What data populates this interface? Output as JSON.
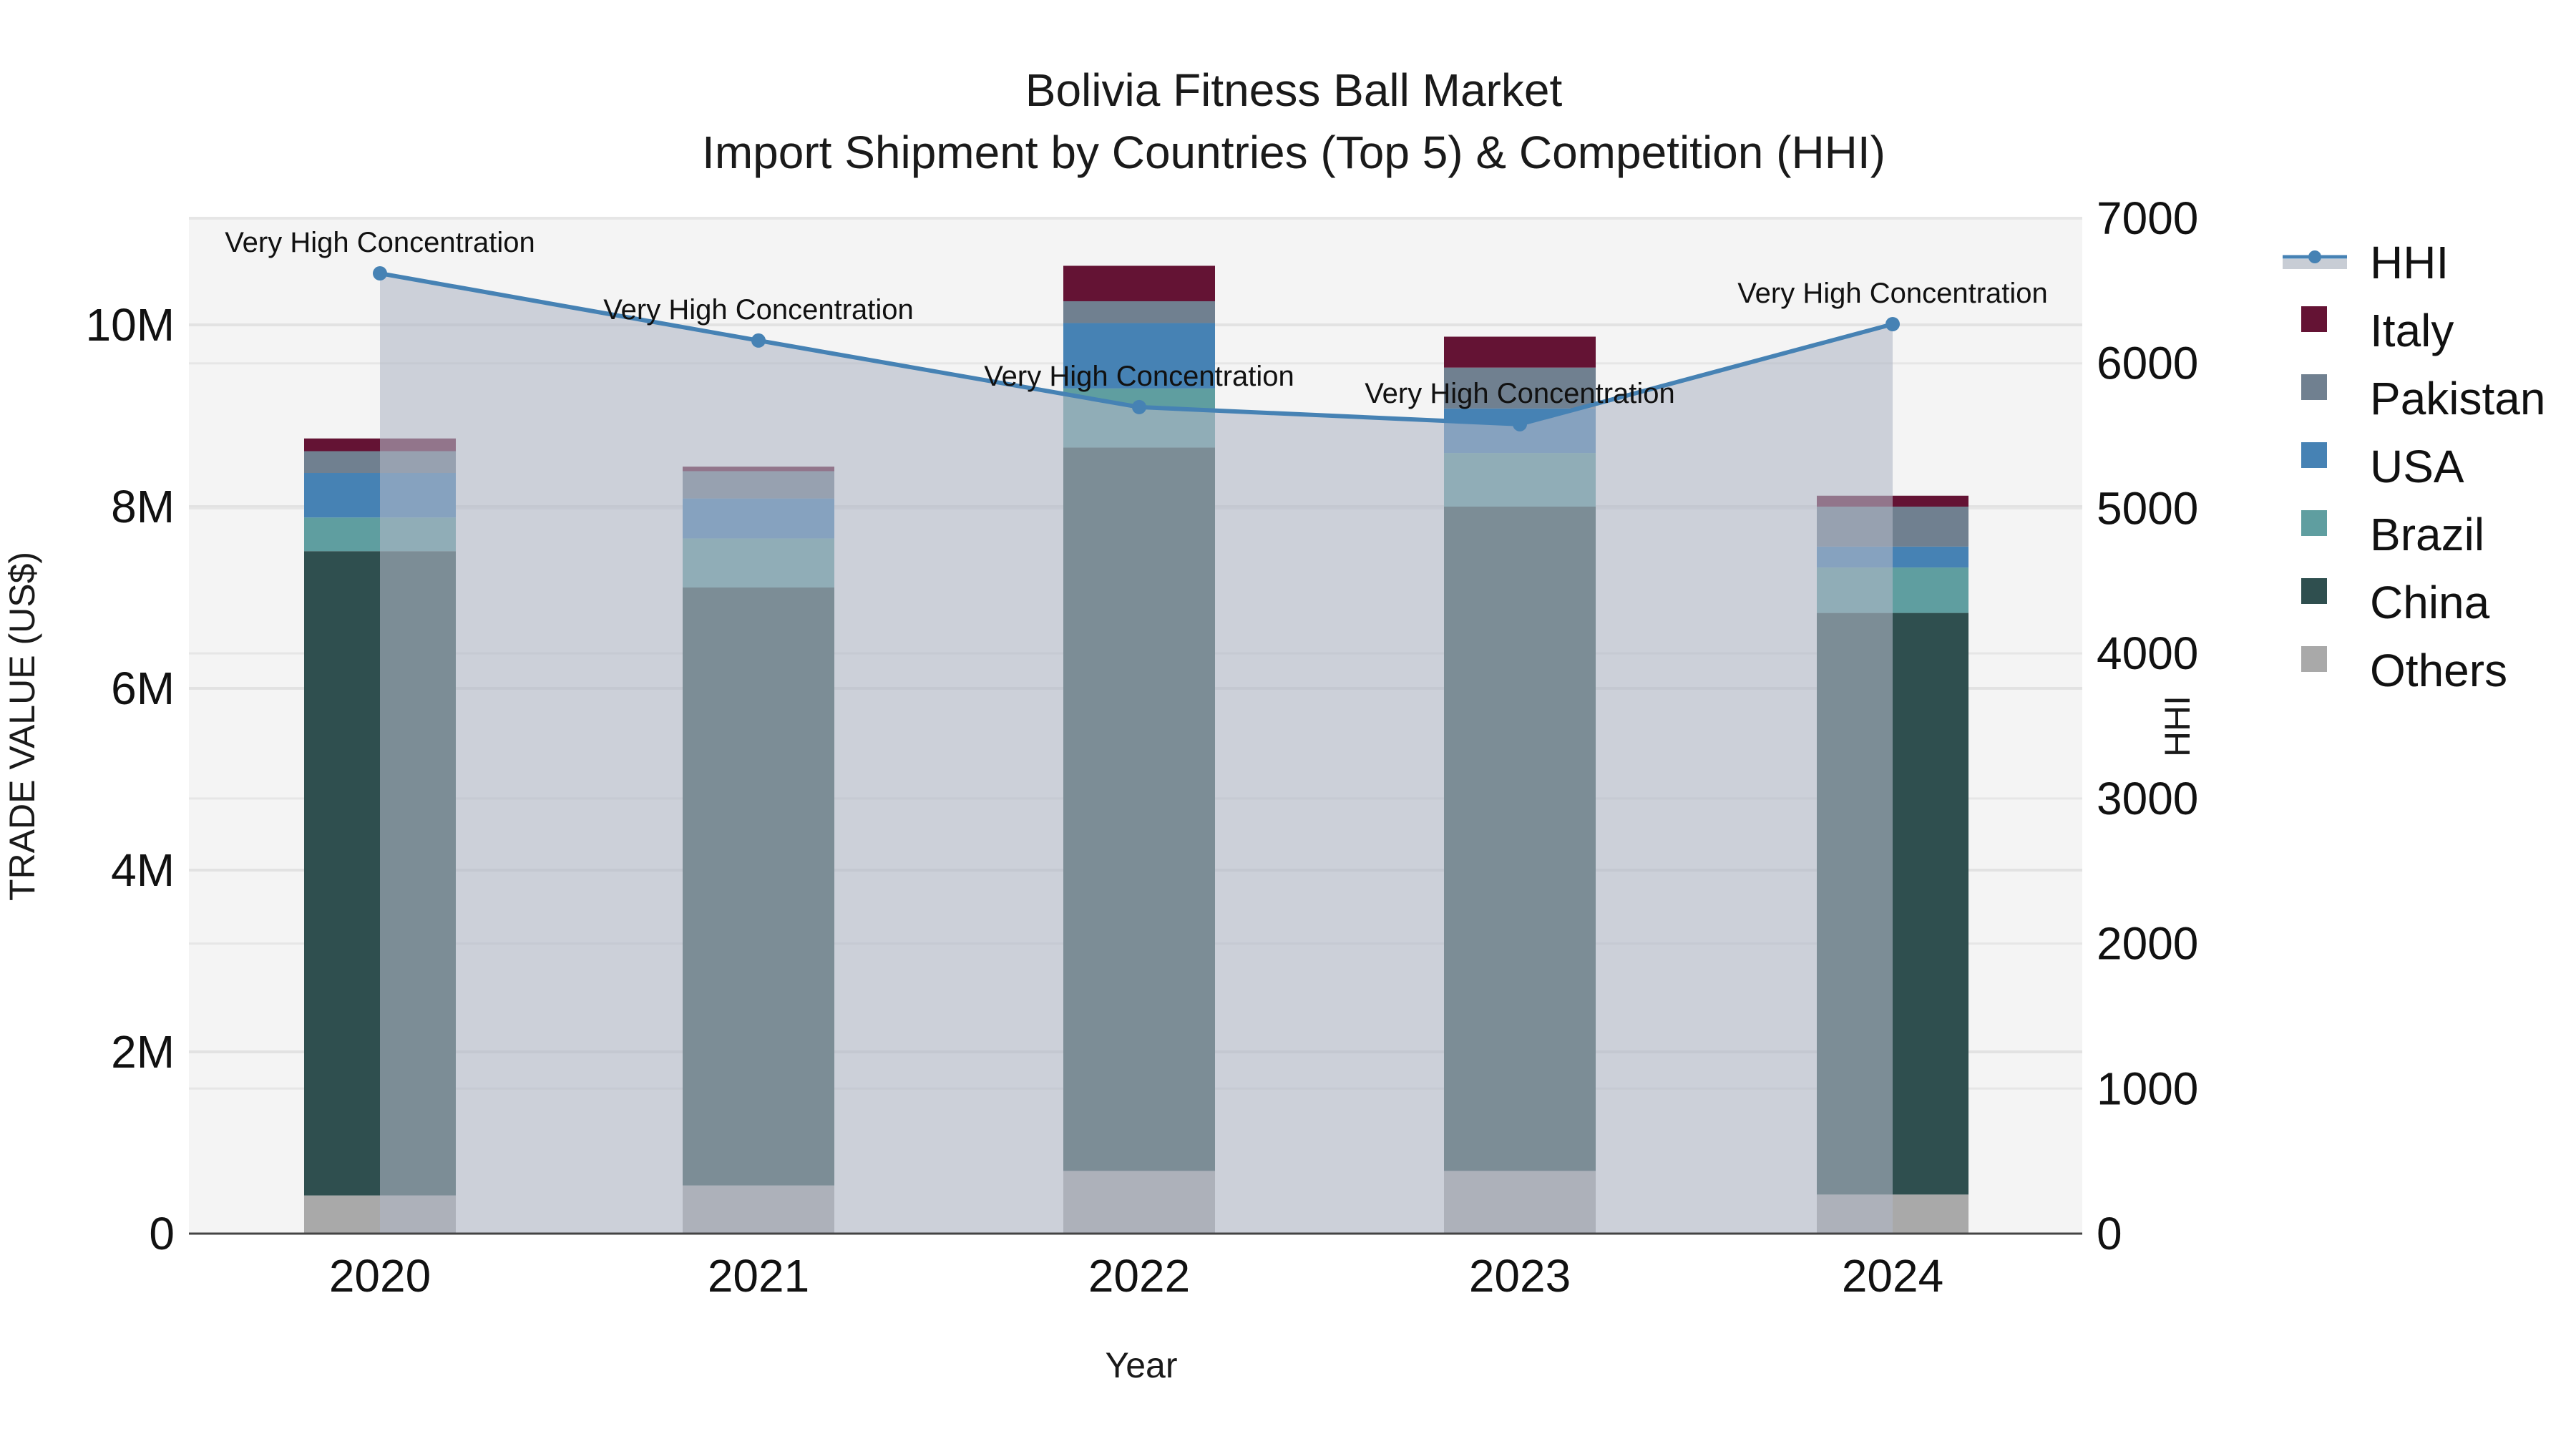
{
  "chart_data": {
    "type": "bar",
    "stacked": true,
    "title": "Bolivia Fitness Ball Market",
    "subtitle": "Import Shipment by Countries (Top 5) & Competition (HHI)",
    "xlabel": "Year",
    "ylabel": "TRADE VALUE (US$)",
    "y2label": "HHI",
    "categories": [
      "2020",
      "2021",
      "2022",
      "2023",
      "2024"
    ],
    "ylim": [
      0,
      11200000
    ],
    "y2lim": [
      0,
      7000
    ],
    "yticks": [
      {
        "value": 0,
        "label": "0"
      },
      {
        "value": 2000000,
        "label": "2M"
      },
      {
        "value": 4000000,
        "label": "4M"
      },
      {
        "value": 6000000,
        "label": "6M"
      },
      {
        "value": 8000000,
        "label": "8M"
      },
      {
        "value": 10000000,
        "label": "10M"
      }
    ],
    "y2ticks": [
      {
        "value": 0,
        "label": "0"
      },
      {
        "value": 1000,
        "label": "1000"
      },
      {
        "value": 2000,
        "label": "2000"
      },
      {
        "value": 3000,
        "label": "3000"
      },
      {
        "value": 4000,
        "label": "4000"
      },
      {
        "value": 5000,
        "label": "5000"
      },
      {
        "value": 6000,
        "label": "6000"
      },
      {
        "value": 7000,
        "label": "7000"
      }
    ],
    "grid": true,
    "legend_position": "right",
    "series": [
      {
        "name": "Others",
        "color": "#a9a9a9",
        "values": [
          420000,
          530000,
          690000,
          690000,
          430000
        ]
      },
      {
        "name": "China",
        "color": "#2f4f4f",
        "values": [
          7090000,
          6580000,
          7960000,
          7310000,
          6400000
        ]
      },
      {
        "name": "Brazil",
        "color": "#5f9ea0",
        "values": [
          370000,
          540000,
          650000,
          590000,
          500000
        ]
      },
      {
        "name": "USA",
        "color": "#4682b4",
        "values": [
          490000,
          440000,
          720000,
          490000,
          230000
        ]
      },
      {
        "name": "Pakistan",
        "color": "#708090",
        "values": [
          240000,
          300000,
          240000,
          450000,
          440000
        ]
      },
      {
        "name": "Italy",
        "color": "#641334",
        "values": [
          140000,
          50000,
          390000,
          340000,
          120000
        ]
      }
    ],
    "line_series": {
      "name": "HHI",
      "axis": "right",
      "color": "#4682b4",
      "fill_color": "#b0b8c6",
      "values": [
        6620,
        6157,
        5698,
        5580,
        6270
      ],
      "annotations": [
        "Very High Concentration",
        "Very High Concentration",
        "Very High Concentration",
        "Very High Concentration",
        "Very High Concentration"
      ]
    }
  },
  "legend": {
    "items": [
      {
        "label": "HHI",
        "kind": "line",
        "color": "#4682b4"
      },
      {
        "label": "Italy",
        "kind": "box",
        "color": "#641334"
      },
      {
        "label": "Pakistan",
        "kind": "box",
        "color": "#708090"
      },
      {
        "label": "USA",
        "kind": "box",
        "color": "#4682b4"
      },
      {
        "label": "Brazil",
        "kind": "box",
        "color": "#5f9ea0"
      },
      {
        "label": "China",
        "kind": "box",
        "color": "#2f4f4f"
      },
      {
        "label": "Others",
        "kind": "box",
        "color": "#a9a9a9"
      }
    ]
  },
  "colors": {
    "plot_bg": "#f4f4f4",
    "grid": "#e2e2e2",
    "axis_line": "#444444"
  }
}
